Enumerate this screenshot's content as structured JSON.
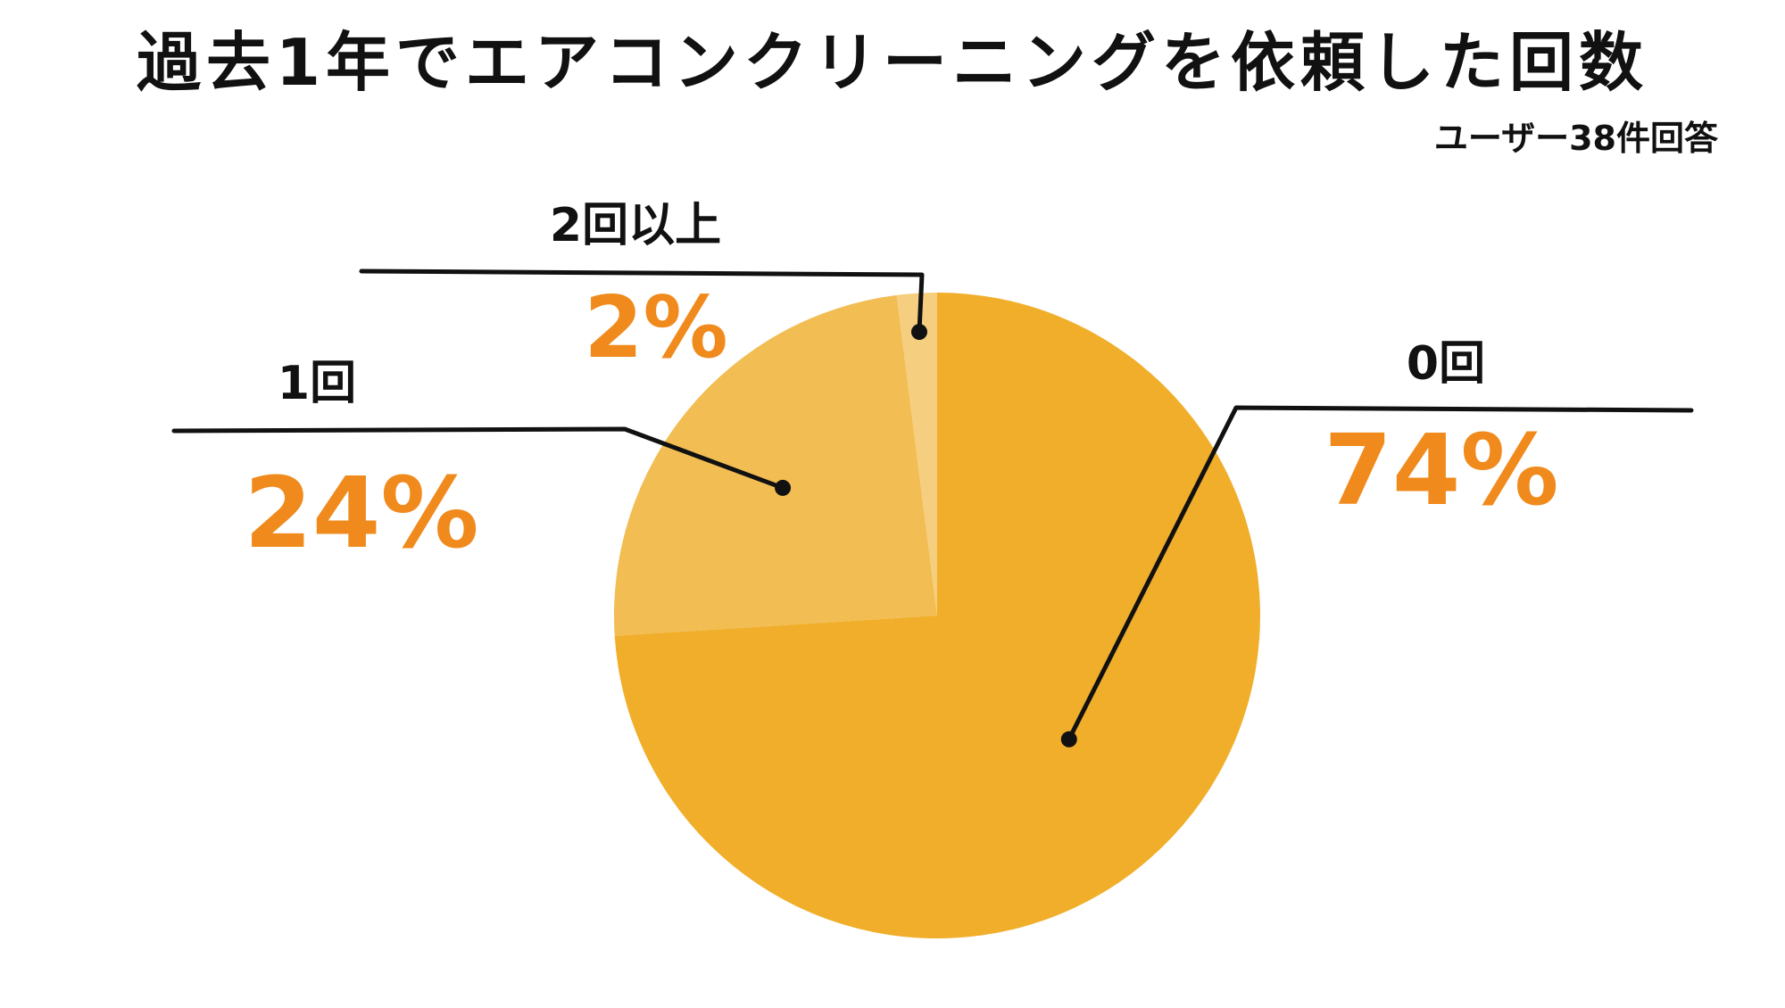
{
  "chart_data": {
    "type": "pie",
    "title": "過去1年でエアコンクリーニングを依頼した回数",
    "subtitle": "ユーザー38件回答",
    "slices": [
      {
        "label": "0回",
        "value": 74,
        "value_label": "74%",
        "color": "#f0ae2a"
      },
      {
        "label": "1回",
        "value": 24,
        "value_label": "24%",
        "color": "#f2bd52"
      },
      {
        "label": "2回以上",
        "value": 2,
        "value_label": "2%",
        "color": "#f5cf7f"
      }
    ],
    "start_direction": "12 o'clock",
    "direction": "clockwise",
    "label_color": "#f08a1c",
    "legend": "none"
  }
}
